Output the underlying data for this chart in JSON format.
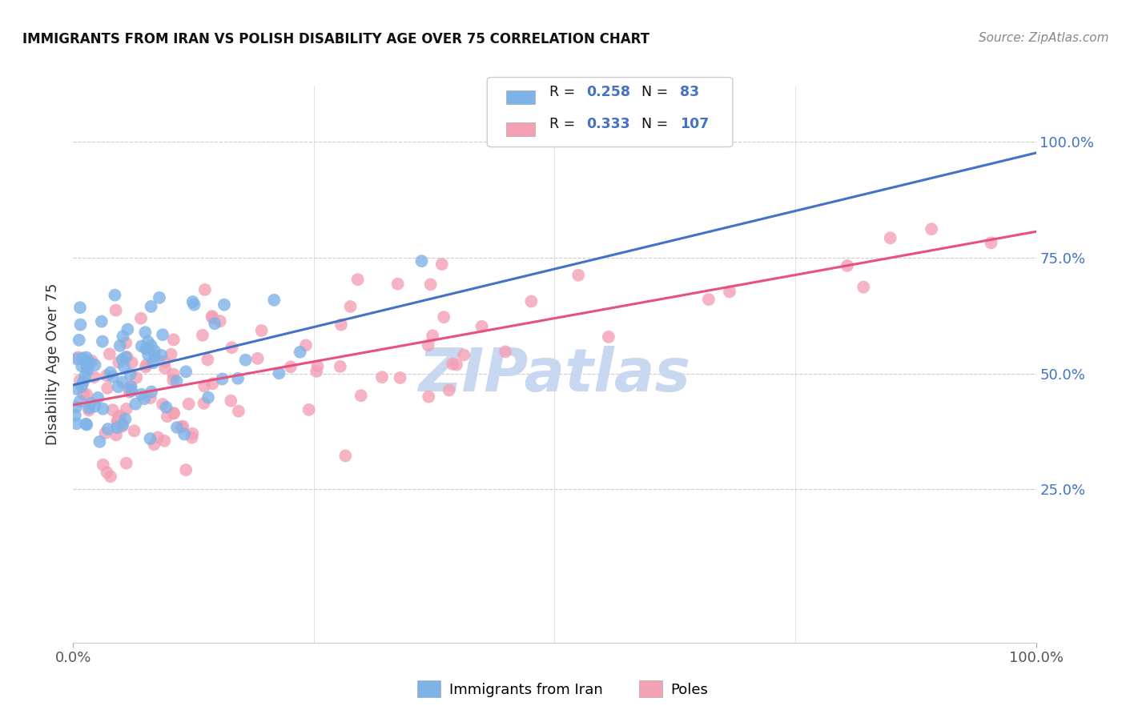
{
  "title": "IMMIGRANTS FROM IRAN VS POLISH DISABILITY AGE OVER 75 CORRELATION CHART",
  "source": "Source: ZipAtlas.com",
  "ylabel": "Disability Age Over 75",
  "ytick_labels": [
    "25.0%",
    "50.0%",
    "75.0%",
    "100.0%"
  ],
  "ytick_values": [
    0.25,
    0.5,
    0.75,
    1.0
  ],
  "xlim": [
    0.0,
    1.0
  ],
  "ylim": [
    -0.08,
    1.12
  ],
  "legend_label1": "Immigrants from Iran",
  "legend_label2": "Poles",
  "R1": 0.258,
  "N1": 83,
  "R2": 0.333,
  "N2": 107,
  "color_iran": "#7EB3E8",
  "color_poland": "#F4A0B5",
  "color_iran_line": "#4472C4",
  "color_poland_line": "#E85080",
  "color_R_label": "#4472C4",
  "watermark_color": "#C8D8F0",
  "title_fontsize": 12,
  "axis_fontsize": 13,
  "source_fontsize": 11
}
